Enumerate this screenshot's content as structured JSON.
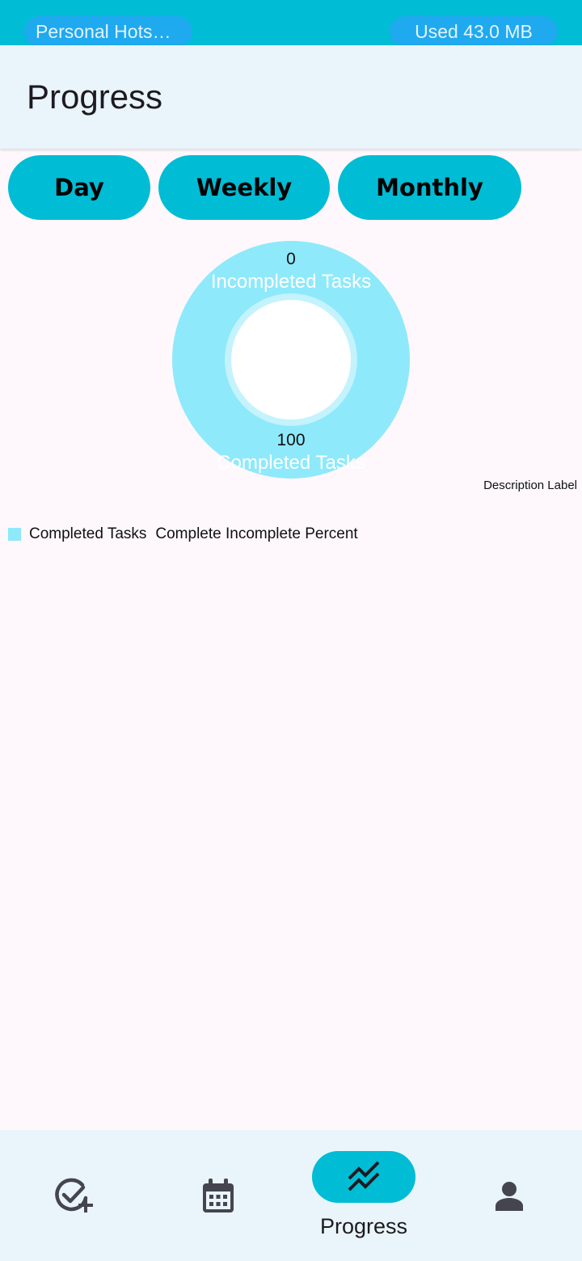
{
  "status_bar": {
    "hotspot_label": "Personal Hotspo…",
    "usage_label": "Used  43.0 MB"
  },
  "app_bar": {
    "title": "Progress"
  },
  "period_buttons": {
    "day": "Day",
    "weekly": "Weekly",
    "monthly": "Monthly"
  },
  "chart_data": {
    "type": "pie",
    "style": "donut",
    "slices": [
      {
        "label": "Incompleted Tasks",
        "value": 0
      },
      {
        "label": "Completed Tasks",
        "value": 100
      }
    ],
    "colors": [
      "#8ee9fb",
      "#c4f3fd"
    ],
    "description": "Description Label",
    "legend": {
      "placement": "bottom-left",
      "entries": [
        "Completed Tasks",
        "Complete Incomplete Percent"
      ]
    }
  },
  "bottom_nav": {
    "items": [
      {
        "icon": "task-add-icon",
        "label": ""
      },
      {
        "icon": "calendar-icon",
        "label": ""
      },
      {
        "icon": "trending-icon",
        "label": "Progress",
        "active": true
      },
      {
        "icon": "person-icon",
        "label": ""
      }
    ]
  },
  "colors": {
    "accent": "#00bcd4",
    "pill_bg": "#1fa9ef",
    "app_bar_bg": "#e9f5fa",
    "page_bg": "#fef8fc",
    "chart_slice": "#8ee9fb",
    "nav_icon": "#45454f"
  }
}
